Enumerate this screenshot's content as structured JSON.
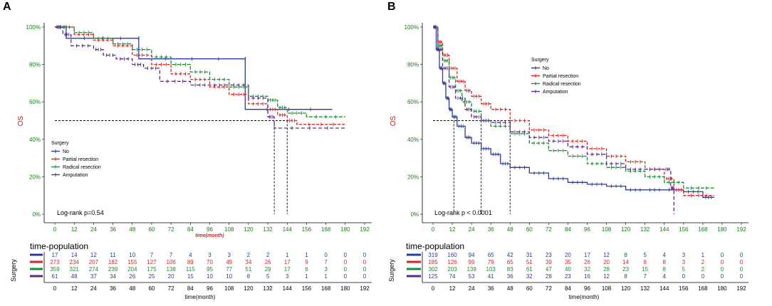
{
  "chart_data": [
    {
      "type": "line",
      "panel_label": "A",
      "title": "",
      "ylabel": "OS",
      "xlabel": "time(month)",
      "ylim": [
        0,
        1
      ],
      "xlim": [
        0,
        192
      ],
      "y_ticks": [
        "0%",
        "20%",
        "40%",
        "60%",
        "80%",
        "100%"
      ],
      "x_ticks": [
        0,
        12,
        24,
        36,
        48,
        60,
        72,
        84,
        96,
        108,
        120,
        132,
        144,
        156,
        168,
        180,
        192
      ],
      "legend_title": "Surgery",
      "legend_position": "middle-left",
      "annotation": "Log-rank  p=0.54",
      "median_line_y": 0.5,
      "median_times": [
        136,
        144
      ],
      "series": [
        {
          "name": "No",
          "color": "#2b3a9a",
          "dash": "",
          "points": [
            [
              0,
              1.0
            ],
            [
              7,
              1.0
            ],
            [
              7,
              0.94
            ],
            [
              52,
              0.94
            ],
            [
              52,
              0.83
            ],
            [
              118,
              0.83
            ],
            [
              118,
              0.56
            ],
            [
              172,
              0.56
            ]
          ]
        },
        {
          "name": "Partial resection",
          "color": "#e02020",
          "dash": "4 2",
          "points": [
            [
              0,
              1.0
            ],
            [
              12,
              0.96
            ],
            [
              24,
              0.93
            ],
            [
              36,
              0.9
            ],
            [
              48,
              0.85
            ],
            [
              60,
              0.8
            ],
            [
              72,
              0.75
            ],
            [
              84,
              0.72
            ],
            [
              96,
              0.68
            ],
            [
              108,
              0.64
            ],
            [
              120,
              0.59
            ],
            [
              132,
              0.56
            ],
            [
              138,
              0.53
            ],
            [
              144,
              0.5
            ],
            [
              150,
              0.48
            ],
            [
              180,
              0.48
            ]
          ]
        },
        {
          "name": "Radical resection",
          "color": "#1a8a3a",
          "dash": "5 2",
          "points": [
            [
              0,
              1.0
            ],
            [
              12,
              0.97
            ],
            [
              24,
              0.94
            ],
            [
              36,
              0.91
            ],
            [
              48,
              0.88
            ],
            [
              60,
              0.84
            ],
            [
              72,
              0.8
            ],
            [
              84,
              0.76
            ],
            [
              96,
              0.72
            ],
            [
              108,
              0.68
            ],
            [
              120,
              0.63
            ],
            [
              132,
              0.61
            ],
            [
              138,
              0.57
            ],
            [
              144,
              0.54
            ],
            [
              156,
              0.52
            ],
            [
              180,
              0.52
            ]
          ]
        },
        {
          "name": "Amputation",
          "color": "#5b2a86",
          "dash": "5 3",
          "points": [
            [
              0,
              1.0
            ],
            [
              5,
              0.96
            ],
            [
              10,
              0.9
            ],
            [
              24,
              0.88
            ],
            [
              30,
              0.85
            ],
            [
              38,
              0.83
            ],
            [
              48,
              0.8
            ],
            [
              55,
              0.78
            ],
            [
              65,
              0.71
            ],
            [
              84,
              0.69
            ],
            [
              96,
              0.69
            ],
            [
              108,
              0.69
            ],
            [
              120,
              0.62
            ],
            [
              132,
              0.52
            ],
            [
              136,
              0.46
            ],
            [
              180,
              0.46
            ]
          ]
        }
      ],
      "risk_table": {
        "title": "time-population",
        "ylabel": "Surgery",
        "xlabel": "time(month)",
        "times": [
          0,
          12,
          24,
          36,
          48,
          60,
          72,
          84,
          96,
          108,
          120,
          132,
          144,
          156,
          168,
          180,
          192
        ],
        "rows": [
          [
            17,
            14,
            12,
            11,
            10,
            7,
            7,
            4,
            3,
            3,
            2,
            2,
            1,
            1,
            0,
            0,
            0
          ],
          [
            273,
            234,
            207,
            182,
            155,
            127,
            106,
            89,
            70,
            49,
            34,
            26,
            17,
            9,
            7,
            0,
            0
          ],
          [
            359,
            321,
            274,
            239,
            204,
            175,
            138,
            115,
            95,
            77,
            51,
            29,
            17,
            6,
            3,
            0,
            0
          ],
          [
            61,
            48,
            37,
            34,
            26,
            25,
            20,
            15,
            10,
            10,
            8,
            5,
            3,
            1,
            1,
            0,
            0
          ]
        ]
      }
    },
    {
      "type": "line",
      "panel_label": "B",
      "title": "",
      "ylabel": "OS",
      "xlabel": "",
      "ylim": [
        0,
        1
      ],
      "xlim": [
        0,
        192
      ],
      "y_ticks": [
        "0%",
        "20%",
        "40%",
        "60%",
        "80%",
        "100%"
      ],
      "x_ticks": [
        0,
        12,
        24,
        36,
        48,
        60,
        72,
        84,
        96,
        108,
        120,
        132,
        144,
        156,
        168,
        180,
        192
      ],
      "legend_title": "Surgery",
      "legend_position": "top-right",
      "annotation": "Log-rank  p < 0.0001",
      "median_line_y": 0.5,
      "median_times": [
        13,
        30,
        48
      ],
      "series": [
        {
          "name": "No",
          "color": "#2b3a9a",
          "dash": "",
          "points": [
            [
              0,
              1.0
            ],
            [
              2,
              0.88
            ],
            [
              4,
              0.78
            ],
            [
              6,
              0.7
            ],
            [
              8,
              0.62
            ],
            [
              10,
              0.56
            ],
            [
              12,
              0.52
            ],
            [
              15,
              0.47
            ],
            [
              20,
              0.41
            ],
            [
              24,
              0.38
            ],
            [
              30,
              0.35
            ],
            [
              36,
              0.32
            ],
            [
              42,
              0.27
            ],
            [
              48,
              0.25
            ],
            [
              60,
              0.22
            ],
            [
              72,
              0.19
            ],
            [
              84,
              0.17
            ],
            [
              96,
              0.16
            ],
            [
              108,
              0.15
            ],
            [
              120,
              0.13
            ],
            [
              132,
              0.13
            ],
            [
              144,
              0.13
            ],
            [
              156,
              0.12
            ],
            [
              168,
              0.09
            ],
            [
              175,
              0.09
            ]
          ]
        },
        {
          "name": "Partial resection",
          "color": "#e02020",
          "dash": "4 2",
          "points": [
            [
              0,
              1.0
            ],
            [
              3,
              0.92
            ],
            [
              6,
              0.85
            ],
            [
              10,
              0.78
            ],
            [
              15,
              0.71
            ],
            [
              20,
              0.66
            ],
            [
              24,
              0.63
            ],
            [
              30,
              0.59
            ],
            [
              36,
              0.56
            ],
            [
              48,
              0.5
            ],
            [
              60,
              0.45
            ],
            [
              72,
              0.42
            ],
            [
              84,
              0.39
            ],
            [
              96,
              0.35
            ],
            [
              108,
              0.31
            ],
            [
              120,
              0.28
            ],
            [
              132,
              0.24
            ],
            [
              144,
              0.19
            ],
            [
              150,
              0.13
            ],
            [
              156,
              0.1
            ],
            [
              175,
              0.1
            ]
          ]
        },
        {
          "name": "Radical resection",
          "color": "#1a8a3a",
          "dash": "5 2",
          "points": [
            [
              0,
              1.0
            ],
            [
              3,
              0.9
            ],
            [
              6,
              0.82
            ],
            [
              10,
              0.73
            ],
            [
              14,
              0.66
            ],
            [
              18,
              0.6
            ],
            [
              24,
              0.55
            ],
            [
              30,
              0.5
            ],
            [
              36,
              0.47
            ],
            [
              48,
              0.43
            ],
            [
              60,
              0.38
            ],
            [
              72,
              0.34
            ],
            [
              84,
              0.31
            ],
            [
              96,
              0.27
            ],
            [
              108,
              0.25
            ],
            [
              120,
              0.23
            ],
            [
              132,
              0.2
            ],
            [
              144,
              0.17
            ],
            [
              156,
              0.14
            ],
            [
              175,
              0.14
            ]
          ]
        },
        {
          "name": "Amputation",
          "color": "#5b2a86",
          "dash": "5 3",
          "points": [
            [
              0,
              1.0
            ],
            [
              3,
              0.88
            ],
            [
              6,
              0.78
            ],
            [
              10,
              0.68
            ],
            [
              14,
              0.62
            ],
            [
              20,
              0.56
            ],
            [
              24,
              0.52
            ],
            [
              30,
              0.5
            ],
            [
              36,
              0.49
            ],
            [
              48,
              0.44
            ],
            [
              60,
              0.41
            ],
            [
              72,
              0.39
            ],
            [
              84,
              0.36
            ],
            [
              96,
              0.32
            ],
            [
              108,
              0.27
            ],
            [
              120,
              0.24
            ],
            [
              132,
              0.24
            ],
            [
              144,
              0.24
            ],
            [
              148,
              0.14
            ],
            [
              150,
              0.0
            ]
          ]
        }
      ],
      "risk_table": {
        "title": "time-population",
        "ylabel": "Surgery",
        "xlabel": "time(month)",
        "times": [
          0,
          12,
          24,
          36,
          48,
          60,
          72,
          84,
          96,
          108,
          120,
          132,
          144,
          156,
          168,
          180,
          192
        ],
        "rows": [
          [
            319,
            160,
            94,
            65,
            42,
            31,
            23,
            20,
            17,
            12,
            8,
            5,
            4,
            3,
            1,
            0,
            0
          ],
          [
            185,
            126,
            99,
            79,
            65,
            51,
            39,
            35,
            26,
            20,
            14,
            8,
            8,
            3,
            2,
            0,
            0
          ],
          [
            302,
            203,
            139,
            103,
            83,
            61,
            47,
            40,
            32,
            28,
            23,
            15,
            8,
            5,
            2,
            0,
            0
          ],
          [
            125,
            74,
            53,
            41,
            36,
            32,
            28,
            23,
            16,
            12,
            8,
            7,
            4,
            0,
            0,
            0,
            0
          ]
        ]
      }
    }
  ]
}
